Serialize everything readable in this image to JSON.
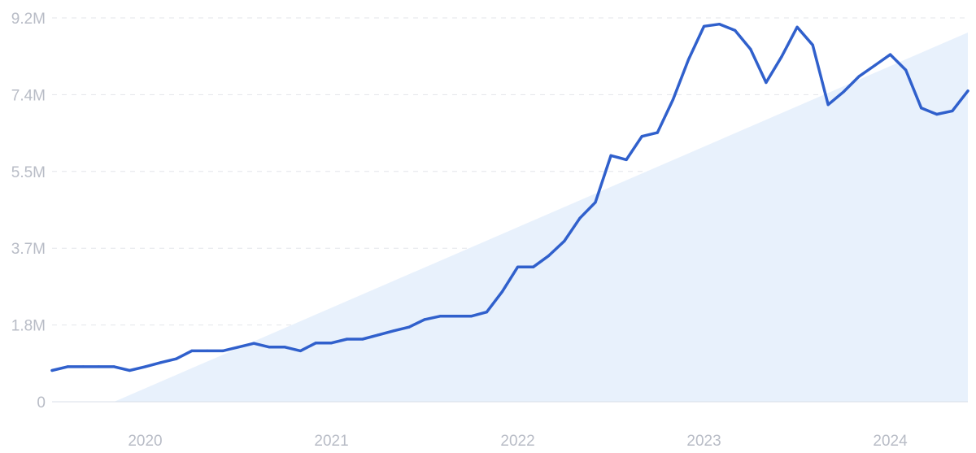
{
  "chart_data": {
    "type": "line",
    "title": "",
    "xlabel": "",
    "ylabel": "",
    "ylim": [
      0,
      9.2
    ],
    "y_ticks": [
      {
        "value": 0,
        "label": "0"
      },
      {
        "value": 1.84,
        "label": "1.8M"
      },
      {
        "value": 3.68,
        "label": "3.7M"
      },
      {
        "value": 5.52,
        "label": "5.5M"
      },
      {
        "value": 7.36,
        "label": "7.4M"
      },
      {
        "value": 9.2,
        "label": "9.2M"
      }
    ],
    "x_range": [
      "2019-07",
      "2024-06"
    ],
    "x_ticks": [
      {
        "date": "2020-01",
        "label": "2020"
      },
      {
        "date": "2021-01",
        "label": "2021"
      },
      {
        "date": "2022-01",
        "label": "2022"
      },
      {
        "date": "2023-01",
        "label": "2023"
      },
      {
        "date": "2024-01",
        "label": "2024"
      }
    ],
    "grid": "horizontal-dashed",
    "colors": {
      "line": "#3060cc",
      "trend_fill": "#e8f1fc",
      "grid": "#e3e5ea",
      "tick_text": "#b8bcc6",
      "baseline": "#d9dfe8"
    },
    "trend": {
      "start": {
        "date": "2019-11",
        "value": 0
      },
      "end": {
        "date": "2024-06",
        "value": 8.85
      }
    },
    "series": [
      {
        "x": [
          "2019-07",
          "2019-08",
          "2019-09",
          "2019-10",
          "2019-11",
          "2019-12",
          "2020-01",
          "2020-02",
          "2020-03",
          "2020-04",
          "2020-05",
          "2020-06",
          "2020-07",
          "2020-08",
          "2020-09",
          "2020-10",
          "2020-11",
          "2020-12",
          "2021-01",
          "2021-02",
          "2021-03",
          "2021-04",
          "2021-05",
          "2021-06",
          "2021-07",
          "2021-08",
          "2021-09",
          "2021-10",
          "2021-11",
          "2021-12",
          "2022-01",
          "2022-02",
          "2022-03",
          "2022-04",
          "2022-05",
          "2022-06",
          "2022-07",
          "2022-08",
          "2022-09",
          "2022-10",
          "2022-11",
          "2022-12",
          "2023-01",
          "2023-02",
          "2023-03",
          "2023-04",
          "2023-05",
          "2023-06",
          "2023-07",
          "2023-08",
          "2023-09",
          "2023-10",
          "2023-11",
          "2023-12",
          "2024-01",
          "2024-02",
          "2024-03",
          "2024-04",
          "2024-05",
          "2024-06"
        ],
        "values": [
          0.75,
          0.84,
          0.84,
          0.84,
          0.84,
          0.75,
          0.84,
          0.94,
          1.03,
          1.22,
          1.22,
          1.22,
          1.31,
          1.4,
          1.31,
          1.31,
          1.22,
          1.41,
          1.41,
          1.5,
          1.5,
          1.6,
          1.7,
          1.79,
          1.97,
          2.05,
          2.05,
          2.05,
          2.15,
          2.64,
          3.23,
          3.23,
          3.5,
          3.85,
          4.4,
          4.78,
          5.9,
          5.8,
          6.36,
          6.45,
          7.24,
          8.2,
          9.0,
          9.05,
          8.9,
          8.45,
          7.65,
          8.27,
          8.98,
          8.55,
          7.12,
          7.43,
          7.8,
          8.06,
          8.32,
          7.95,
          7.04,
          6.89,
          6.97,
          7.45
        ]
      }
    ]
  }
}
